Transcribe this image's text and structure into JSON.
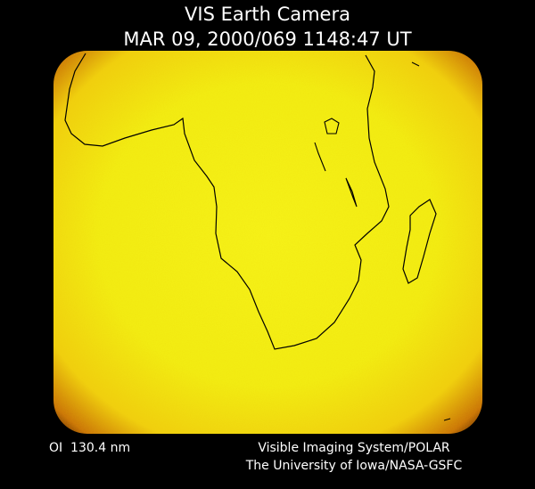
{
  "header": {
    "title": "VIS Earth Camera",
    "timestamp": "MAR 09, 2000/069 1148:47 UT"
  },
  "footer": {
    "filter": "OI  130.4 nm",
    "credit_line1": "Visible Imaging System/POLAR",
    "credit_line2": "The University of Iowa/NASA-GSFC"
  }
}
